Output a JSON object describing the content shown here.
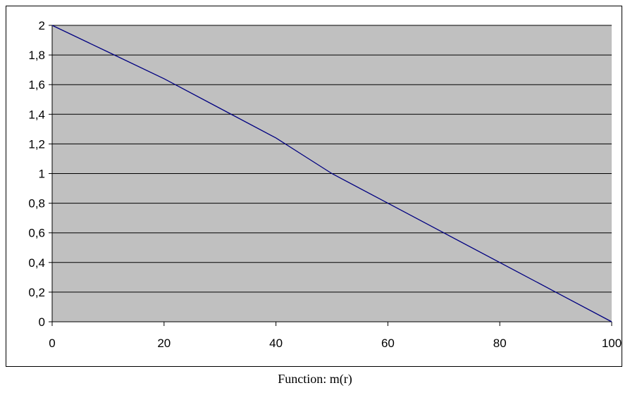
{
  "chart_data": {
    "type": "line",
    "title": "",
    "xlabel": "",
    "ylabel": "",
    "xlim": [
      0,
      100
    ],
    "ylim": [
      0,
      2
    ],
    "x_ticks": [
      "0",
      "20",
      "40",
      "60",
      "80",
      "100"
    ],
    "y_ticks": [
      "0",
      "0,2",
      "0,4",
      "0,6",
      "0,8",
      "1",
      "1,2",
      "1,4",
      "1,6",
      "1,8",
      "2"
    ],
    "grid": "horizontal",
    "plot_background": "#c0c0c0",
    "line_color": "#000080",
    "series": [
      {
        "x": [
          0,
          10,
          20,
          30,
          40,
          45,
          50,
          60,
          70,
          80,
          90,
          100
        ],
        "y": [
          2,
          1.82,
          1.64,
          1.44,
          1.24,
          1.12,
          1.0,
          0.8,
          0.6,
          0.4,
          0.2,
          0
        ]
      }
    ]
  },
  "caption": "Function: m(r)"
}
